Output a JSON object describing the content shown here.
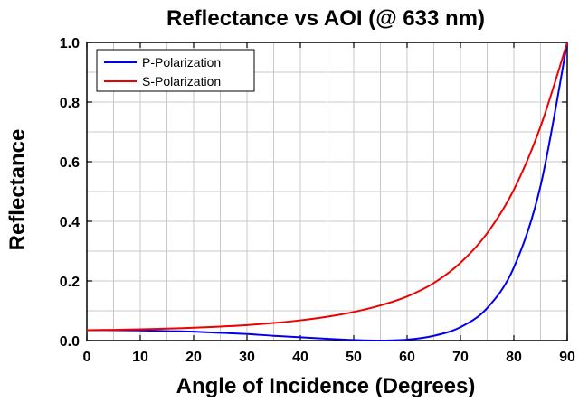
{
  "chart_data": {
    "type": "line",
    "title": "Reflectance vs AOI (@ 633 nm)",
    "xlabel": "Angle of Incidence (Degrees)",
    "ylabel": "Reflectance",
    "xlim": [
      0,
      90
    ],
    "ylim": [
      0,
      1.0
    ],
    "x_ticks": [
      "0",
      "10",
      "20",
      "30",
      "40",
      "50",
      "60",
      "70",
      "80",
      "90"
    ],
    "y_ticks": [
      "0.0",
      "0.2",
      "0.4",
      "0.6",
      "0.8",
      "1.0"
    ],
    "grid": true,
    "legend_position": "top-left",
    "x": [
      0,
      5,
      10,
      15,
      20,
      25,
      30,
      35,
      40,
      45,
      50,
      55,
      60,
      65,
      70,
      75,
      80,
      85,
      90
    ],
    "series": [
      {
        "name": "P-Polarization",
        "color": "#0000ee",
        "values": [
          0.035,
          0.035,
          0.034,
          0.032,
          0.03,
          0.026,
          0.022,
          0.016,
          0.011,
          0.006,
          0.002,
          0.0,
          0.003,
          0.016,
          0.045,
          0.109,
          0.245,
          0.519,
          1.0
        ]
      },
      {
        "name": "S-Polarization",
        "color": "#ee0000",
        "values": [
          0.035,
          0.036,
          0.038,
          0.04,
          0.043,
          0.047,
          0.052,
          0.059,
          0.068,
          0.08,
          0.096,
          0.118,
          0.148,
          0.193,
          0.261,
          0.36,
          0.506,
          0.718,
          1.0
        ]
      }
    ]
  }
}
